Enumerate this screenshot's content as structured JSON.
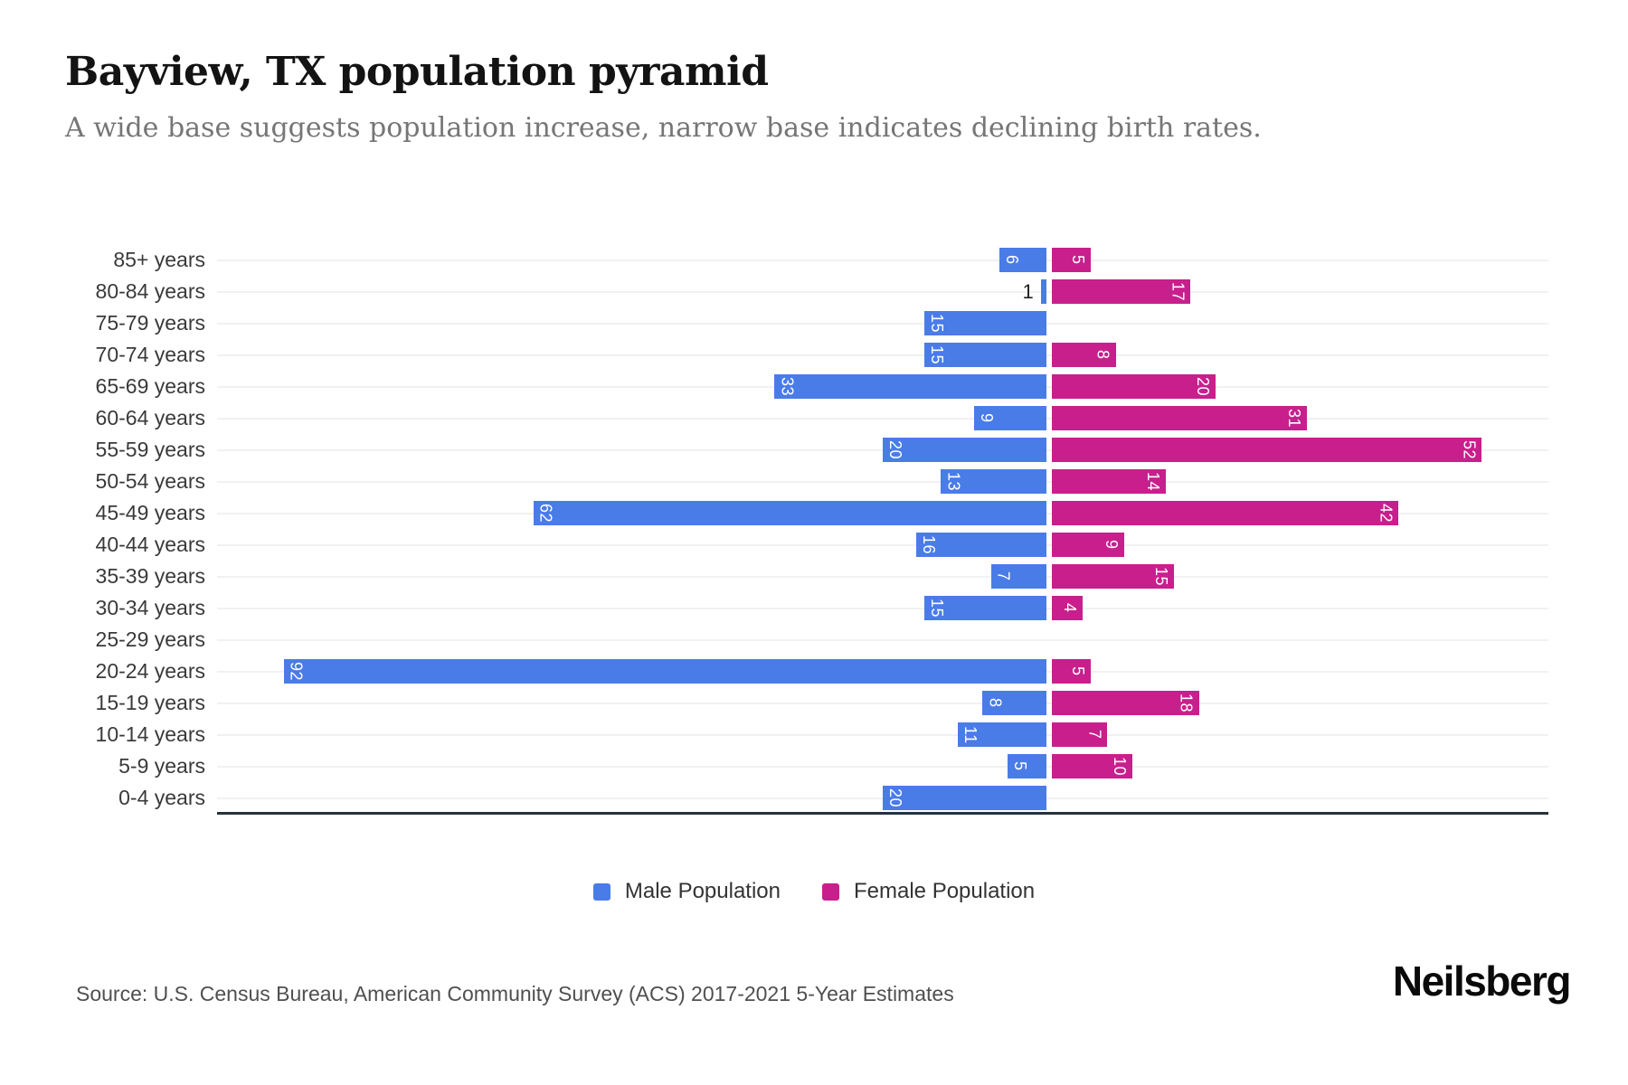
{
  "chart_data": {
    "type": "bar",
    "variant": "population-pyramid",
    "title": "Bayview, TX population pyramid",
    "subtitle": "A wide base suggests population increase, narrow base indicates declining birth rates.",
    "categories": [
      "85+ years",
      "80-84 years",
      "75-79 years",
      "70-74 years",
      "65-69 years",
      "60-64 years",
      "55-59 years",
      "50-54 years",
      "45-49 years",
      "40-44 years",
      "35-39 years",
      "30-34 years",
      "25-29 years",
      "20-24 years",
      "15-19 years",
      "10-14 years",
      "5-9 years",
      "0-4 years"
    ],
    "series": [
      {
        "name": "Male Population",
        "direction": "left",
        "color": "#4a7ce8",
        "values": [
          6,
          1,
          15,
          15,
          33,
          9,
          20,
          13,
          62,
          16,
          7,
          15,
          0,
          92,
          8,
          11,
          5,
          20
        ]
      },
      {
        "name": "Female Population",
        "direction": "right",
        "color": "#c91f8d",
        "values": [
          5,
          17,
          0,
          8,
          20,
          31,
          52,
          14,
          42,
          9,
          15,
          4,
          0,
          5,
          18,
          7,
          10,
          0
        ]
      }
    ],
    "xlim": [
      -100,
      60
    ],
    "grid": true,
    "legend_position": "bottom",
    "bar_label_color": "#ffffff",
    "outside_label_color": "#222222",
    "axis_line_color": "#28323a",
    "gridline_color": "#f1f1f1"
  },
  "footer": {
    "source": "Source: U.S. Census Bureau, American Community Survey (ACS) 2017-2021 5-Year Estimates",
    "logo": "Neilsberg"
  }
}
